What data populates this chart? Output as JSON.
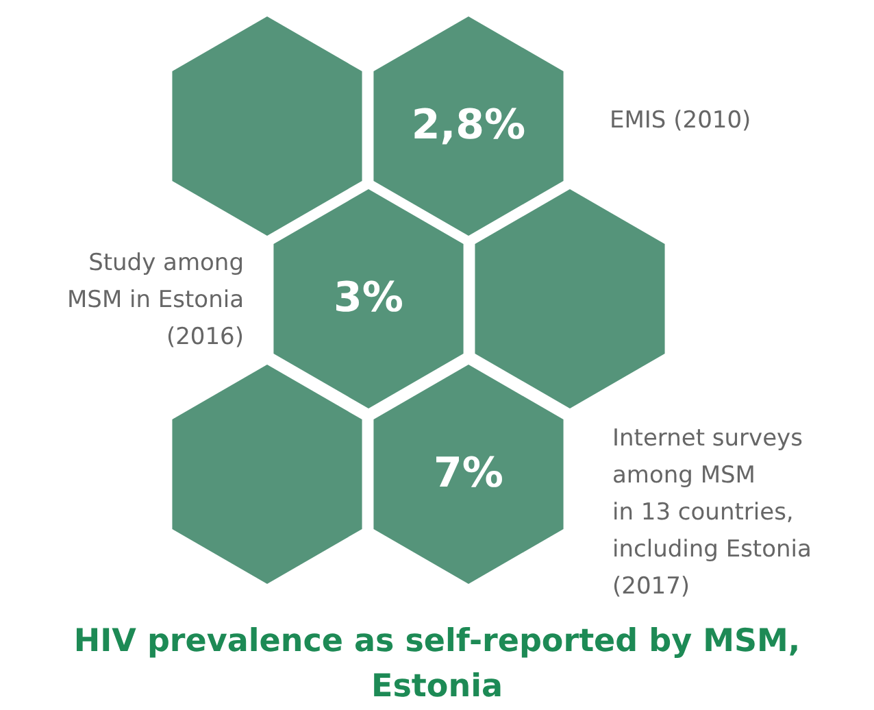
{
  "chart_data": {
    "type": "other",
    "title": "HIV prevalence as self-reported by MSM,\nEstonia",
    "categories": [
      "EMIS (2010)",
      "Study among\nMSM in Estonia\n(2016)",
      "Internet surveys\namong MSM\nin 13 countries,\nincluding Estonia\n(2017)"
    ],
    "values": [
      2.8,
      3,
      7
    ],
    "value_labels": [
      "2,8%",
      "3%",
      "7%"
    ],
    "color": "#55947a"
  }
}
